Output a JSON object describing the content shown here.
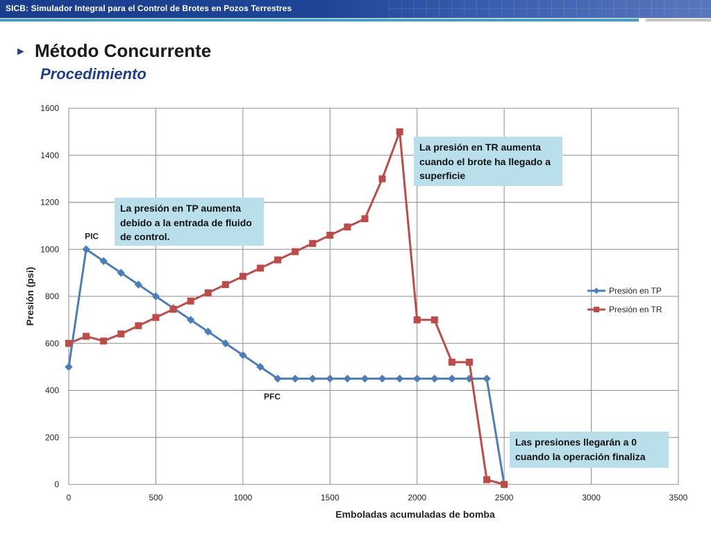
{
  "header": {
    "title": "SICB: Simulador Integral para el Control de Brotes en Pozos Terrestres"
  },
  "slide": {
    "bullet_glyph": "►",
    "heading": "Método Concurrente",
    "subheading": "Procedimiento"
  },
  "callouts": {
    "tp": "La presión en TP aumenta debido a la entrada de fluido de control.",
    "tr": "La presión en TR aumenta cuando el brote ha llegado a superficie",
    "end": "Las presiones llegarán a 0 cuando la operación finaliza"
  },
  "annotations": {
    "pic": "PIC",
    "pfc": "PFC"
  },
  "chart_data": {
    "type": "line",
    "title": "",
    "xlabel": "Emboladas acumuladas de bomba",
    "ylabel": "Presión (psi)",
    "xlim": [
      0,
      3500
    ],
    "ylim": [
      0,
      1600
    ],
    "xticks": [
      0,
      500,
      1000,
      1500,
      2000,
      2500,
      3000,
      3500
    ],
    "yticks": [
      0,
      200,
      400,
      600,
      800,
      1000,
      1200,
      1400,
      1600
    ],
    "grid": true,
    "legend_position": "right",
    "series": [
      {
        "name": "Presión en TP",
        "color": "#4a7ebb",
        "marker": "diamond",
        "x": [
          0,
          100,
          200,
          300,
          400,
          500,
          600,
          700,
          800,
          900,
          1000,
          1100,
          1200,
          1300,
          1400,
          1500,
          1600,
          1700,
          1800,
          1900,
          2000,
          2100,
          2200,
          2300,
          2400,
          2500
        ],
        "y": [
          500,
          1000,
          950,
          900,
          850,
          800,
          750,
          700,
          650,
          600,
          550,
          500,
          450,
          450,
          450,
          450,
          450,
          450,
          450,
          450,
          450,
          450,
          450,
          450,
          450,
          0
        ]
      },
      {
        "name": "Presión en TR",
        "color": "#be4b48",
        "marker": "square",
        "x": [
          0,
          100,
          200,
          300,
          400,
          500,
          600,
          700,
          800,
          900,
          1000,
          1100,
          1200,
          1300,
          1400,
          1500,
          1600,
          1700,
          1800,
          1900,
          2000,
          2100,
          2200,
          2300,
          2400,
          2500
        ],
        "y": [
          600,
          630,
          610,
          640,
          675,
          710,
          745,
          780,
          815,
          850,
          885,
          920,
          955,
          990,
          1025,
          1060,
          1095,
          1130,
          1300,
          1500,
          700,
          700,
          520,
          520,
          20,
          0
        ]
      }
    ]
  }
}
